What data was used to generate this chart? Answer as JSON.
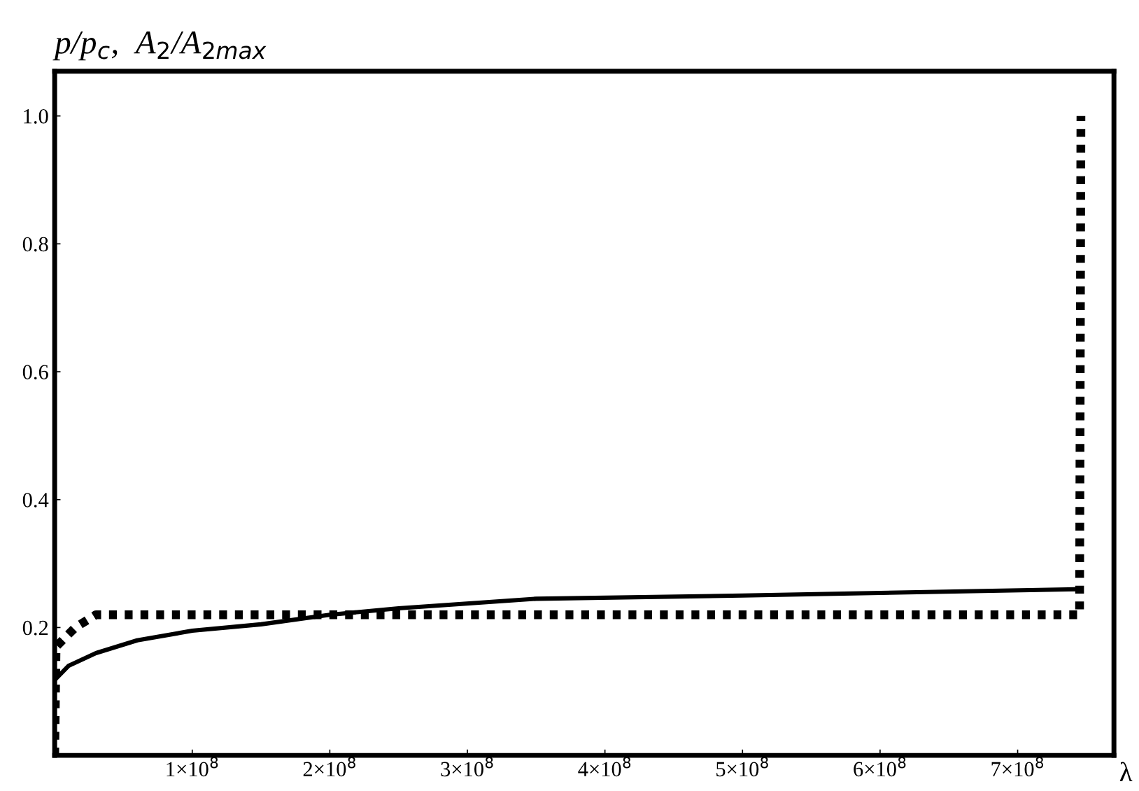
{
  "chart_data": {
    "type": "line",
    "ylabel": "p/p$_{c}$,  A$_{2}$/A$_{2max}$",
    "xlabel": "λ",
    "xlim": [
      0,
      770000000
    ],
    "ylim": [
      0,
      1.07
    ],
    "xticks": [
      {
        "value": 100000000,
        "label": "1×10$^{8}$"
      },
      {
        "value": 200000000,
        "label": "2×10$^{8}$"
      },
      {
        "value": 300000000,
        "label": "3×10$^{8}$"
      },
      {
        "value": 400000000,
        "label": "4×10$^{8}$"
      },
      {
        "value": 500000000,
        "label": "5×10$^{8}$"
      },
      {
        "value": 600000000,
        "label": "6×10$^{8}$"
      },
      {
        "value": 700000000,
        "label": "7×10$^{8}$"
      }
    ],
    "yticks": [
      0.2,
      0.4,
      0.6,
      0.8,
      {
        "value": 1.0,
        "label": "1.0"
      }
    ],
    "grid": false,
    "legend": false,
    "series": [
      {
        "color": "#000000",
        "line_style": "solid",
        "x": [
          1000000,
          10000000,
          30000000,
          60000000,
          100000000,
          150000000,
          200000000,
          250000000,
          350000000,
          500000000,
          745000000
        ],
        "values": [
          0.12,
          0.14,
          0.16,
          0.18,
          0.195,
          0.205,
          0.22,
          0.23,
          0.245,
          0.25,
          0.26
        ]
      },
      {
        "color": "#000000",
        "line_style": "dotted",
        "x": [
          0,
          1000000,
          15000000,
          30000000,
          745000000,
          746000000
        ],
        "values": [
          0.0,
          0.17,
          0.2,
          0.22,
          0.22,
          1.0
        ]
      }
    ]
  }
}
